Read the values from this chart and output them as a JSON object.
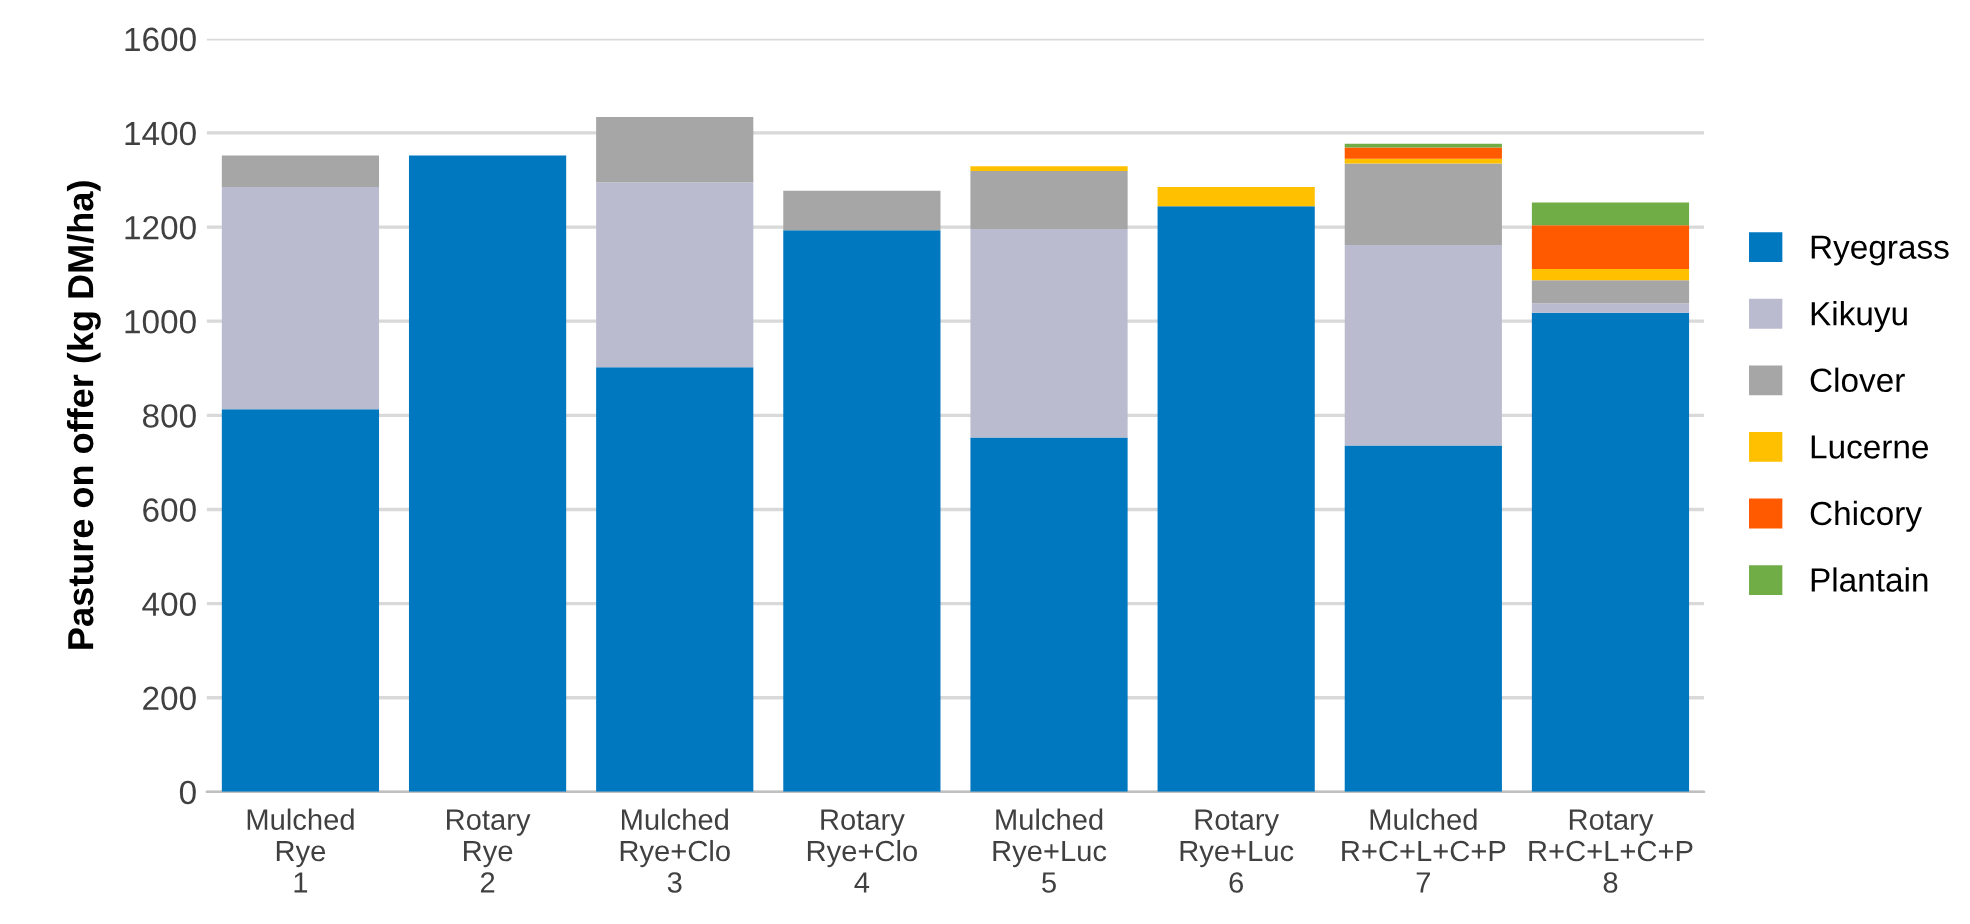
{
  "chart_data": {
    "type": "bar",
    "stacked": true,
    "ylabel": "Pasture on offer (kg DM/ha)",
    "categories": [
      "Mulched\nRye\n1",
      "Rotary\nRye\n2",
      "Mulched\nRye+Clo\n3",
      "Rotary\nRye+Clo\n4",
      "Mulched\nRye+Luc\n5",
      "Rotary\nRye+Luc\n6",
      "Mulched\nR+C+L+C+P\n7",
      "Rotary\nR+C+L+C+P\n8"
    ],
    "series": [
      {
        "name": "Ryegrass",
        "color": "#0078c0",
        "values": [
          813,
          1352,
          902,
          1193,
          753,
          1244,
          736,
          1018
        ]
      },
      {
        "name": "Kikuyu",
        "color": "#bbbbd0",
        "values": [
          472,
          0,
          393,
          0,
          443,
          0,
          426,
          20
        ]
      },
      {
        "name": "Clover",
        "color": "#a6a6a6",
        "values": [
          67,
          0,
          139,
          84,
          123,
          0,
          173,
          49
        ]
      },
      {
        "name": "Lucerne",
        "color": "#ffc000",
        "values": [
          0,
          0,
          0,
          0,
          10,
          41,
          10,
          24
        ]
      },
      {
        "name": "Chicory",
        "color": "#ff5a00",
        "values": [
          0,
          0,
          0,
          0,
          0,
          0,
          24,
          93
        ]
      },
      {
        "name": "Plantain",
        "color": "#70ad47",
        "values": [
          0,
          0,
          0,
          0,
          0,
          0,
          8,
          48
        ]
      }
    ],
    "ylim": [
      0,
      1600
    ],
    "yticks": [
      0,
      200,
      400,
      600,
      800,
      1000,
      1200,
      1400,
      1600
    ],
    "grid": "y",
    "legend": "right"
  }
}
